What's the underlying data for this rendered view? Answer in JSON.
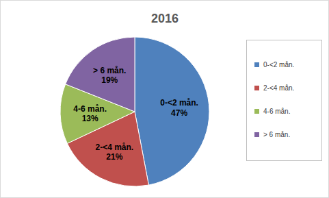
{
  "chart_data": {
    "type": "pie",
    "title": "2016",
    "categories": [
      "0-<2 mån.",
      "2-<4 mån.",
      "4-6 mån.",
      "> 6 mån."
    ],
    "values": [
      47,
      21,
      13,
      19
    ],
    "value_labels": [
      "47%",
      "21%",
      "13%",
      "19%"
    ],
    "colors": [
      "#4f81bd",
      "#c0504d",
      "#9bbb59",
      "#8064a2"
    ],
    "data_labels": true,
    "legend": "right"
  }
}
